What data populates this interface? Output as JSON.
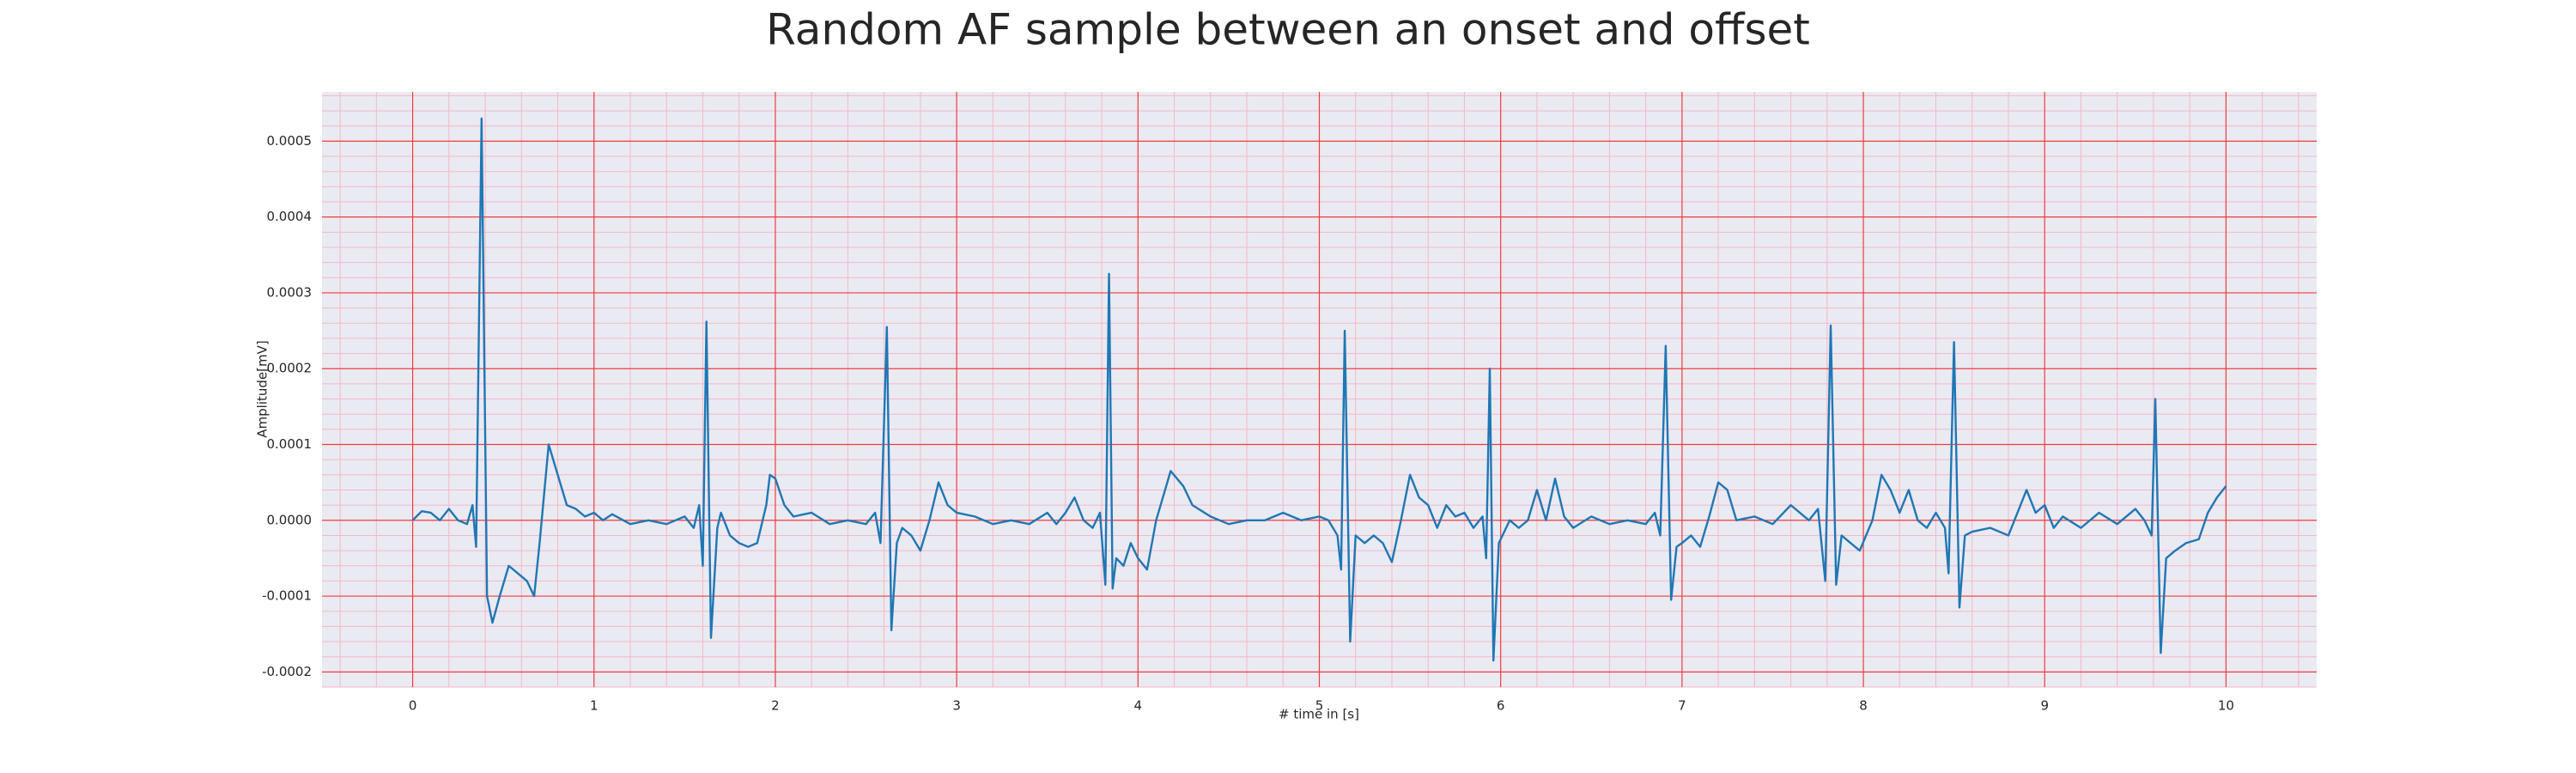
{
  "chart_data": {
    "type": "line",
    "title": "Random AF sample between an onset and offset",
    "xlabel": "# time in [s]",
    "ylabel": "Amplitude[mV]",
    "color": "#1f77b4",
    "grid": true,
    "minor_grid": true,
    "xlim": [
      -0.5,
      10.5
    ],
    "ylim": [
      -0.00022,
      0.000565
    ],
    "xticks": [
      0,
      1,
      2,
      3,
      4,
      5,
      6,
      7,
      8,
      9,
      10
    ],
    "yticks": [
      -0.0002,
      -0.0001,
      {
        "value": 0,
        "label": "0.0000"
      },
      0.0001,
      0.0002,
      0.0003,
      0.0004,
      0.0005
    ],
    "x": [
      0,
      0.05,
      0.1,
      0.15,
      0.2,
      0.25,
      0.3,
      0.33,
      0.35,
      0.38,
      0.41,
      0.44,
      0.48,
      0.53,
      0.58,
      0.63,
      0.67,
      0.7,
      0.75,
      0.8,
      0.85,
      0.9,
      0.95,
      1.0,
      1.05,
      1.1,
      1.2,
      1.3,
      1.4,
      1.5,
      1.55,
      1.58,
      1.6,
      1.62,
      1.645,
      1.68,
      1.7,
      1.75,
      1.8,
      1.85,
      1.9,
      1.95,
      1.97,
      2.0,
      2.05,
      2.1,
      2.2,
      2.3,
      2.4,
      2.5,
      2.55,
      2.58,
      2.615,
      2.64,
      2.67,
      2.7,
      2.75,
      2.8,
      2.85,
      2.9,
      2.95,
      3.0,
      3.1,
      3.2,
      3.3,
      3.4,
      3.5,
      3.55,
      3.6,
      3.65,
      3.7,
      3.75,
      3.79,
      3.82,
      3.84,
      3.86,
      3.88,
      3.92,
      3.96,
      4.0,
      4.05,
      4.1,
      4.18,
      4.25,
      4.3,
      4.4,
      4.5,
      4.6,
      4.7,
      4.8,
      4.9,
      5.0,
      5.05,
      5.1,
      5.12,
      5.14,
      5.17,
      5.2,
      5.25,
      5.3,
      5.35,
      5.4,
      5.45,
      5.5,
      5.55,
      5.6,
      5.65,
      5.7,
      5.75,
      5.8,
      5.85,
      5.9,
      5.92,
      5.94,
      5.96,
      5.99,
      6.05,
      6.1,
      6.15,
      6.2,
      6.25,
      6.3,
      6.35,
      6.4,
      6.5,
      6.6,
      6.7,
      6.8,
      6.85,
      6.88,
      6.91,
      6.94,
      6.97,
      7.0,
      7.05,
      7.1,
      7.15,
      7.2,
      7.25,
      7.3,
      7.4,
      7.5,
      7.6,
      7.7,
      7.75,
      7.79,
      7.82,
      7.85,
      7.88,
      7.93,
      7.98,
      8.05,
      8.1,
      8.15,
      8.2,
      8.25,
      8.3,
      8.35,
      8.4,
      8.45,
      8.47,
      8.5,
      8.53,
      8.56,
      8.6,
      8.7,
      8.8,
      8.85,
      8.9,
      8.95,
      9.0,
      9.05,
      9.1,
      9.2,
      9.3,
      9.4,
      9.5,
      9.55,
      9.59,
      9.61,
      9.64,
      9.67,
      9.72,
      9.78,
      9.85,
      9.9,
      9.95,
      10.0
    ],
    "values": [
      0,
      1.2e-05,
      1e-05,
      0,
      1.5e-05,
      0,
      -5e-06,
      2e-05,
      -3.5e-05,
      0.00053,
      -0.0001,
      -0.000135,
      -0.0001,
      -6e-05,
      -7e-05,
      -8e-05,
      -0.0001,
      -3e-05,
      0.0001,
      6e-05,
      2e-05,
      1.5e-05,
      5e-06,
      1e-05,
      0,
      8e-06,
      -5e-06,
      0,
      -5e-06,
      5e-06,
      -1e-05,
      2e-05,
      -6e-05,
      0.000262,
      -0.000155,
      -1e-05,
      1e-05,
      -2e-05,
      -3e-05,
      -3.5e-05,
      -3e-05,
      2e-05,
      6e-05,
      5.5e-05,
      2e-05,
      5e-06,
      1e-05,
      -5e-06,
      0,
      -5e-06,
      1e-05,
      -3e-05,
      0.000255,
      -0.000145,
      -3e-05,
      -1e-05,
      -2e-05,
      -4e-05,
      0,
      5e-05,
      2e-05,
      1e-05,
      5e-06,
      -5e-06,
      0,
      -5e-06,
      1e-05,
      -5e-06,
      1e-05,
      3e-05,
      0,
      -1e-05,
      1e-05,
      -8.5e-05,
      0.000325,
      -9e-05,
      -5e-05,
      -6e-05,
      -3e-05,
      -5e-05,
      -6.5e-05,
      0,
      6.5e-05,
      4.5e-05,
      2e-05,
      5e-06,
      -5e-06,
      0,
      0,
      1e-05,
      0,
      5e-06,
      0,
      -2e-05,
      -6.5e-05,
      0.00025,
      -0.00016,
      -2e-05,
      -3e-05,
      -2e-05,
      -3e-05,
      -5.5e-05,
      0,
      6e-05,
      3e-05,
      2e-05,
      -1e-05,
      2e-05,
      5e-06,
      1e-05,
      -1e-05,
      5e-06,
      -5e-05,
      0.0002,
      -0.000185,
      -3e-05,
      0,
      -1e-05,
      0,
      4e-05,
      0,
      5.5e-05,
      5e-06,
      -1e-05,
      5e-06,
      -5e-06,
      0,
      -5e-06,
      1e-05,
      -2e-05,
      0.00023,
      -0.000105,
      -3.5e-05,
      -3e-05,
      -2e-05,
      -3.5e-05,
      5e-06,
      5e-05,
      4e-05,
      0,
      5e-06,
      -5e-06,
      2e-05,
      0,
      1.5e-05,
      -8e-05,
      0.000257,
      -8.5e-05,
      -2e-05,
      -3e-05,
      -4e-05,
      0,
      6e-05,
      4e-05,
      1e-05,
      4e-05,
      0,
      -1e-05,
      1e-05,
      -1e-05,
      -7e-05,
      0.000235,
      -0.000115,
      -2e-05,
      -1.5e-05,
      -1e-05,
      -2e-05,
      1e-05,
      4e-05,
      1e-05,
      2e-05,
      -1e-05,
      5e-06,
      -1e-05,
      1e-05,
      -5e-06,
      1.5e-05,
      0,
      -2e-05,
      0.00016,
      -0.000175,
      -5e-05,
      -4e-05,
      -3e-05,
      -2.5e-05,
      1e-05,
      3e-05,
      4.5e-05
    ]
  }
}
